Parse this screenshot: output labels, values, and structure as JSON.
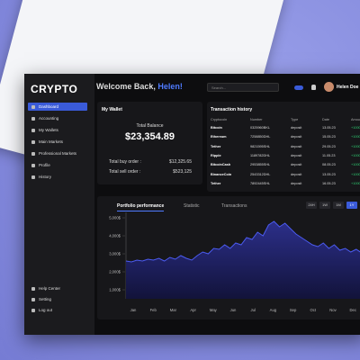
{
  "app": {
    "brand": "CRYPTO",
    "menu": [
      "Dashboard",
      "Accounting",
      "My Wallets",
      "Main Markets",
      "Professional Markets",
      "Profile",
      "History"
    ],
    "footer_menu": [
      "Help Center",
      "Setting",
      "Log out"
    ]
  },
  "header": {
    "greeting": "Welcome Back,",
    "user": "Helen!",
    "search": "Search...",
    "profile": "Helen Doe"
  },
  "wallet": {
    "title": "My Wallet",
    "balance_label": "Total Balance",
    "balance": "$23,354.89",
    "buy_label": "Total buy order :",
    "buy": "$12,325.65",
    "sell_label": "Total sell order :",
    "sell": "$523,125"
  },
  "transactions": {
    "title": "Transaction history",
    "columns": [
      "Cryptocoin",
      "Number",
      "Type",
      "Date",
      "Amount"
    ],
    "rows": [
      [
        "Bitcoin",
        "0325960BKL",
        "deposit",
        "13.05.23",
        "+1000"
      ],
      [
        "Ethereum",
        "7258850DHL",
        "deposit",
        "15.05.23",
        "+1000"
      ],
      [
        "Tether",
        "9821595SHL",
        "deposit",
        "29.05.23",
        "+1000"
      ],
      [
        "Ripple",
        "1189782DHL",
        "deposit",
        "11.05.23",
        "+1000"
      ],
      [
        "BitcoinCash",
        "2953855SHL",
        "deposit",
        "08.05.23",
        "+1000"
      ],
      [
        "BinanceCoin",
        "2543312DHL",
        "deposit",
        "13.05.23",
        "+1000"
      ],
      [
        "Tether",
        "7892445SHL",
        "deposit",
        "16.05.23",
        "+1000"
      ]
    ]
  },
  "chart": {
    "type": "area",
    "tabs": [
      "Portfolio performance",
      "Statistic",
      "Transactions"
    ],
    "ranges": [
      "24H",
      "1W",
      "1M",
      "1Y"
    ],
    "categories": [
      "Jan",
      "Feb",
      "Mar",
      "Apr",
      "May",
      "Jun",
      "Jul",
      "Aug",
      "Sep",
      "Oct",
      "Nov",
      "Dec"
    ],
    "values": [
      2600,
      2550,
      2650,
      2600,
      2700,
      2650,
      2750,
      2600,
      2800,
      2700,
      2900,
      2750,
      2650,
      2900,
      3100,
      3000,
      3300,
      3250,
      3500,
      3300,
      3600,
      3500,
      3900,
      3800,
      4200,
      4000,
      4600,
      4800,
      4500,
      4700,
      4400,
      4100,
      3900,
      3700,
      3500,
      3400,
      3600,
      3300,
      3500,
      3200,
      3300,
      3100,
      3250,
      3050,
      3000
    ],
    "ylim": [
      500,
      5000
    ],
    "yticks": [
      {
        "value": 5000,
        "label": "5,000$"
      },
      {
        "value": 4000,
        "label": "4,000$"
      },
      {
        "value": 3000,
        "label": "3,000$"
      },
      {
        "value": 2000,
        "label": "2,000$"
      },
      {
        "value": 1000,
        "label": "1,000$"
      }
    ],
    "color": "#4b5bf0"
  }
}
